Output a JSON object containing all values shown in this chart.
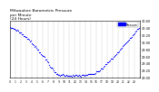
{
  "title": "Milwaukee Barometric Pressure\nper Minute\n(24 Hours)",
  "title_fontsize": 3.2,
  "bg_color": "#ffffff",
  "dot_color": "#0000ff",
  "dot_size": 0.8,
  "legend_color": "#0000ff",
  "legend_label": "Pressure",
  "ylim": [
    29.0,
    30.6
  ],
  "xlim": [
    0,
    1440
  ],
  "ylabel_fontsize": 2.5,
  "xlabel_fontsize": 2.2,
  "ytick_labels": [
    "29.00",
    "29.20",
    "29.40",
    "29.60",
    "29.80",
    "30.00",
    "30.20",
    "30.40",
    "30.60"
  ],
  "ytick_vals": [
    29.0,
    29.2,
    29.4,
    29.6,
    29.8,
    30.0,
    30.2,
    30.4,
    30.6
  ],
  "grid_color": "#bbbbbb",
  "grid_style": "--",
  "grid_lw": 0.3
}
